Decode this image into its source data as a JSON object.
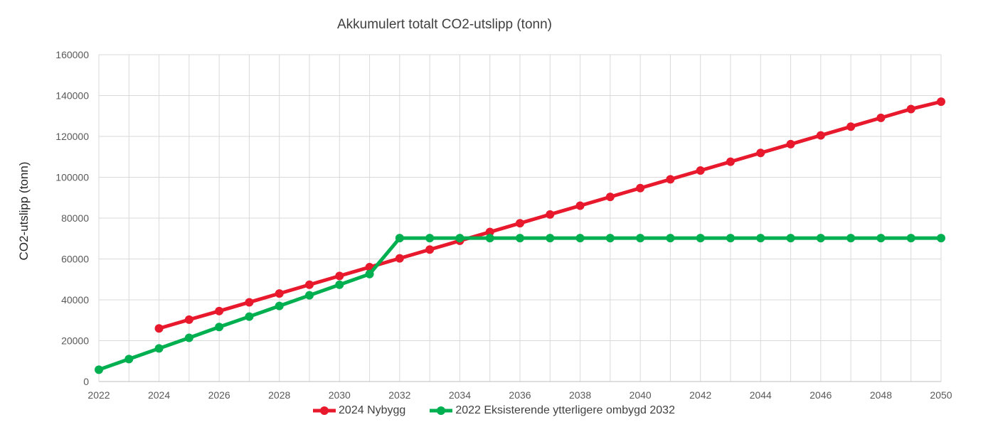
{
  "chart_data": {
    "type": "line",
    "title": "Akkumulert totalt CO2-utslipp (tonn)",
    "xlabel": "",
    "ylabel": "CO2-utslipp (tonn)",
    "xlim": [
      2022,
      2050
    ],
    "ylim": [
      0,
      160000
    ],
    "x_ticks": [
      2022,
      2024,
      2026,
      2028,
      2030,
      2032,
      2034,
      2036,
      2038,
      2040,
      2042,
      2044,
      2046,
      2048,
      2050
    ],
    "y_ticks": [
      0,
      20000,
      40000,
      60000,
      80000,
      100000,
      120000,
      140000,
      160000
    ],
    "grid": true,
    "legend_position": "bottom",
    "series": [
      {
        "name": "2024 Nybygg",
        "color": "#e8192c",
        "x": [
          2024,
          2025,
          2026,
          2027,
          2028,
          2029,
          2030,
          2031,
          2032,
          2033,
          2034,
          2035,
          2036,
          2037,
          2038,
          2039,
          2040,
          2041,
          2042,
          2043,
          2044,
          2045,
          2046,
          2047,
          2048,
          2049,
          2050
        ],
        "values": [
          26000,
          30300,
          34500,
          38800,
          43100,
          47400,
          51700,
          56000,
          60300,
          64600,
          68900,
          73200,
          77500,
          81800,
          86100,
          90400,
          94700,
          99000,
          103300,
          107600,
          111900,
          116200,
          120500,
          124800,
          129100,
          133400,
          137000
        ]
      },
      {
        "name": "2022 Eksisterende ytterligere ombygd 2032",
        "color": "#00b050",
        "x": [
          2022,
          2023,
          2024,
          2025,
          2026,
          2027,
          2028,
          2029,
          2030,
          2031,
          2032,
          2033,
          2034,
          2035,
          2036,
          2037,
          2038,
          2039,
          2040,
          2041,
          2042,
          2043,
          2044,
          2045,
          2046,
          2047,
          2048,
          2049,
          2050
        ],
        "values": [
          5800,
          11000,
          16200,
          21400,
          26700,
          31800,
          37000,
          42200,
          47400,
          52600,
          70200,
          70200,
          70200,
          70200,
          70200,
          70200,
          70200,
          70200,
          70200,
          70200,
          70200,
          70200,
          70200,
          70200,
          70200,
          70200,
          70200,
          70200,
          70200
        ]
      }
    ]
  }
}
